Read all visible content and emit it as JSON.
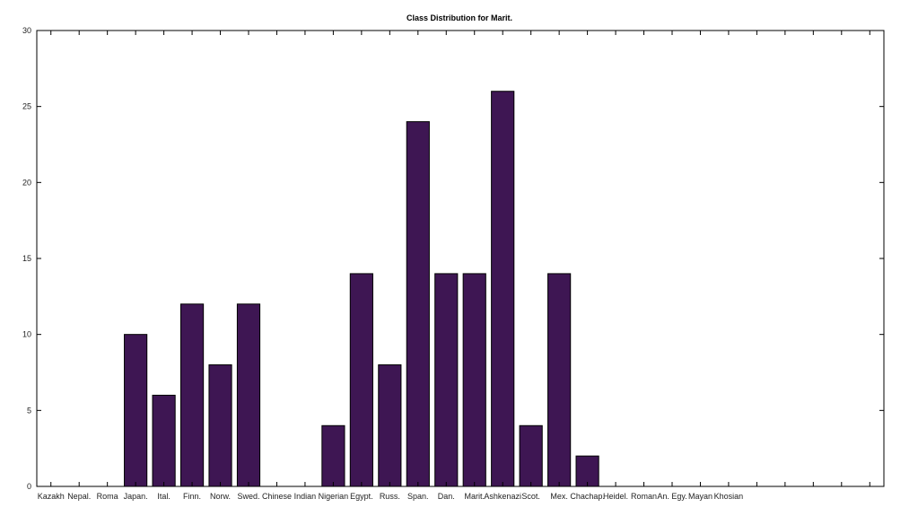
{
  "colors": {
    "bar_fill": "#3e1653",
    "bar_stroke": "#000000",
    "axis": "#000000",
    "background": "#ffffff"
  },
  "chart_data": {
    "type": "bar",
    "title": "Class Distribution for Marit.",
    "xlabel": "",
    "ylabel": "",
    "categories": [
      "Kazakh",
      "Nepal.",
      "Roma",
      "Japan.",
      "Ital.",
      "Finn.",
      "Norw.",
      "Swed.",
      "Chinese",
      "Indian",
      "Nigerian",
      "Egypt.",
      "Russ.",
      "Span.",
      "Dan.",
      "Marit.",
      "Ashkenazi",
      "Scot.",
      "Mex.",
      "Chachap.",
      "Heidel.",
      "Roman",
      "An. Egy.",
      "Mayan",
      "Khosian"
    ],
    "values": [
      0,
      0,
      0,
      10,
      6,
      12,
      8,
      12,
      0,
      0,
      4,
      14,
      8,
      24,
      14,
      14,
      26,
      4,
      14,
      2,
      0,
      0,
      0,
      0,
      0
    ],
    "ylim": [
      0,
      30
    ],
    "yticks": [
      0,
      5,
      10,
      15,
      20,
      25,
      30
    ],
    "xlim": [
      0.5,
      30.5
    ],
    "grid": false,
    "legend": "none"
  }
}
